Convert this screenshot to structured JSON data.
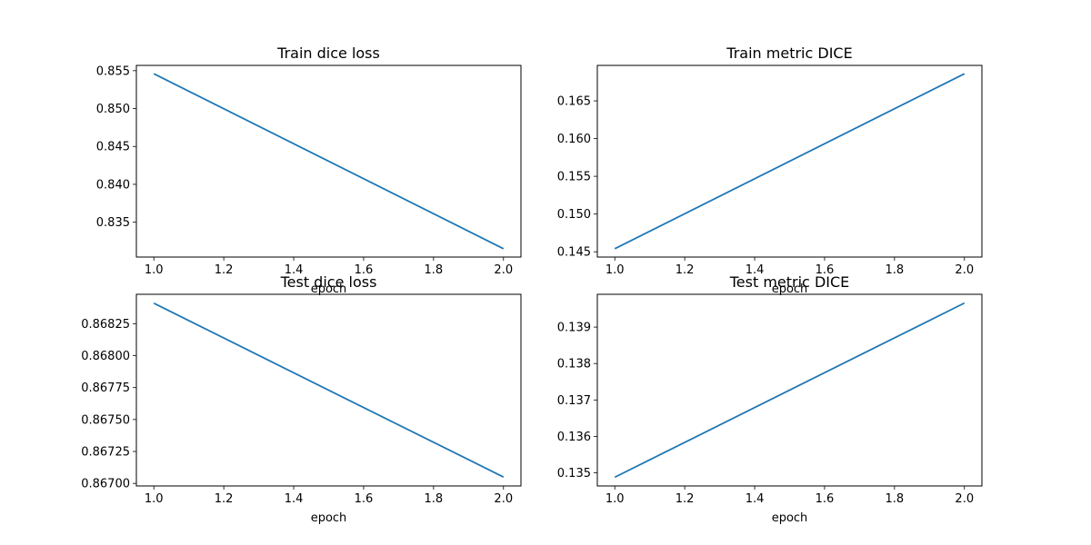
{
  "figure": {
    "background": "#ffffff",
    "line_color": "#1f77b4"
  },
  "chart_data": [
    {
      "type": "line",
      "title": "Train dice loss",
      "xlabel": "epoch",
      "ylabel": "",
      "x": [
        1.0,
        2.0
      ],
      "series": [
        {
          "values": [
            0.8546,
            0.8315
          ]
        }
      ],
      "xlim": [
        0.95,
        2.05
      ],
      "ylim": [
        0.8304,
        0.8557
      ],
      "xticks": [
        "1.0",
        "1.2",
        "1.4",
        "1.6",
        "1.8",
        "2.0"
      ],
      "yticks": [
        "0.835",
        "0.840",
        "0.845",
        "0.850",
        "0.855"
      ],
      "grid": false
    },
    {
      "type": "line",
      "title": "Train metric DICE",
      "xlabel": "epoch",
      "ylabel": "",
      "x": [
        1.0,
        2.0
      ],
      "series": [
        {
          "values": [
            0.1454,
            0.1686
          ]
        }
      ],
      "xlim": [
        0.95,
        2.05
      ],
      "ylim": [
        0.1443,
        0.1697
      ],
      "xticks": [
        "1.0",
        "1.2",
        "1.4",
        "1.6",
        "1.8",
        "2.0"
      ],
      "yticks": [
        "0.145",
        "0.150",
        "0.155",
        "0.160",
        "0.165"
      ],
      "grid": false
    },
    {
      "type": "line",
      "title": "Test dice loss",
      "xlabel": "epoch",
      "ylabel": "",
      "x": [
        1.0,
        2.0
      ],
      "series": [
        {
          "values": [
            0.86841,
            0.86705
          ]
        }
      ],
      "xlim": [
        0.95,
        2.05
      ],
      "ylim": [
        0.86698,
        0.86848
      ],
      "xticks": [
        "1.0",
        "1.2",
        "1.4",
        "1.6",
        "1.8",
        "2.0"
      ],
      "yticks": [
        "0.86700",
        "0.86725",
        "0.86750",
        "0.86775",
        "0.86800",
        "0.86825"
      ],
      "grid": false
    },
    {
      "type": "line",
      "title": "Test metric DICE",
      "xlabel": "epoch",
      "ylabel": "",
      "x": [
        1.0,
        2.0
      ],
      "series": [
        {
          "values": [
            0.13488,
            0.13966
          ]
        }
      ],
      "xlim": [
        0.95,
        2.05
      ],
      "ylim": [
        0.13464,
        0.1399
      ],
      "xticks": [
        "1.0",
        "1.2",
        "1.4",
        "1.6",
        "1.8",
        "2.0"
      ],
      "yticks": [
        "0.135",
        "0.136",
        "0.137",
        "0.138",
        "0.139"
      ],
      "grid": false
    }
  ]
}
